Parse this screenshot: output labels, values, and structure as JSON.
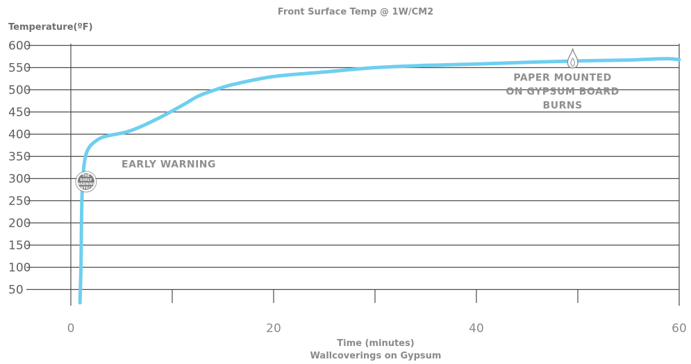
{
  "chart_data": {
    "type": "line",
    "title": "Front Surface Temp @ 1W/CM2",
    "ylabel": "Temperature(ºF)",
    "xlabel": "Time (minutes)",
    "subtitle": "Wallcoverings on Gypsum",
    "x_ticks": [
      "0",
      "20",
      "40",
      "60"
    ],
    "y_ticks": [
      "600",
      "550",
      "500",
      "450",
      "400",
      "350",
      "300",
      "250",
      "200",
      "150",
      "100",
      "50"
    ],
    "xlim": [
      0,
      60
    ],
    "ylim": [
      20,
      600
    ],
    "grid": true,
    "series": [
      {
        "color": "#6ecff0",
        "x": [
          0.9,
          1.0,
          1.05,
          1.1,
          1.2,
          1.3,
          1.5,
          1.8,
          2.2,
          3.0,
          4.0,
          5.5,
          7.0,
          9.0,
          11.0,
          12.5,
          14.0,
          16.0,
          20.0,
          25.0,
          30.0,
          35.0,
          40.0,
          45.0,
          50.0,
          55.0,
          57.0,
          59.0,
          60.0
        ],
        "y": [
          20,
          100,
          200,
          260,
          300,
          330,
          355,
          370,
          380,
          392,
          398,
          405,
          418,
          440,
          465,
          485,
          498,
          512,
          530,
          540,
          550,
          555,
          558,
          562,
          565,
          567,
          569,
          570,
          568
        ]
      }
    ],
    "annotations": [
      {
        "lines": [
          "EARLY WARNING"
        ],
        "x": 5,
        "y": 325
      },
      {
        "lines": [
          "PAPER MOUNTED",
          "ON GYPSUM BOARD",
          "BURNS"
        ],
        "x": 48.5,
        "y": 520
      }
    ],
    "markers": [
      {
        "name": "early-warning-badge",
        "x": 1.5,
        "y": 293,
        "lines": [
          "THE",
          "EARLY",
          "WARNING",
          "EFFECT"
        ]
      },
      {
        "name": "flame-icon",
        "x": 49.5,
        "y": 565
      }
    ]
  }
}
